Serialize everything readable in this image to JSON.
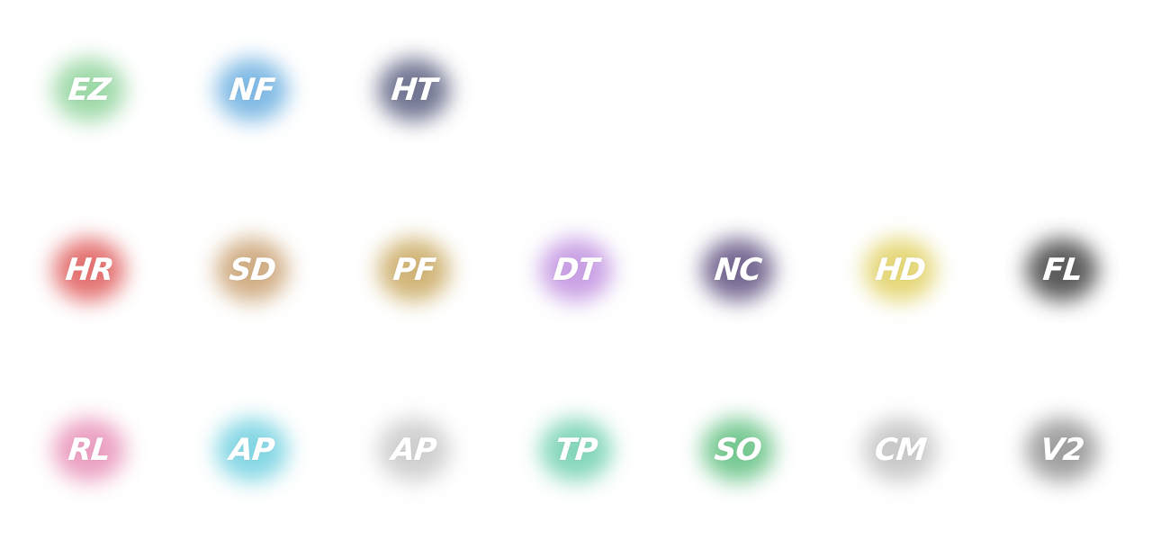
{
  "mods": [
    {
      "acronym": "EZ",
      "color": "#8ed39a"
    },
    {
      "acronym": "NF",
      "color": "#6aaee0"
    },
    {
      "acronym": "HT",
      "color": "#5a5f80"
    },
    {
      "acronym": "HR",
      "color": "#e05a5a"
    },
    {
      "acronym": "SD",
      "color": "#c9a070"
    },
    {
      "acronym": "PF",
      "color": "#c9a860"
    },
    {
      "acronym": "DT",
      "color": "#c090e0"
    },
    {
      "acronym": "NC",
      "color": "#605080"
    },
    {
      "acronym": "HD",
      "color": "#e0d060"
    },
    {
      "acronym": "FL",
      "color": "#404040"
    },
    {
      "acronym": "RL",
      "color": "#e890b8"
    },
    {
      "acronym": "AP",
      "color": "#70d0e0"
    },
    {
      "acronym": "AP",
      "color": "#c8c8c8"
    },
    {
      "acronym": "TP",
      "color": "#70d0b0"
    },
    {
      "acronym": "SO",
      "color": "#60c080"
    },
    {
      "acronym": "CM",
      "color": "#c0c0c0"
    },
    {
      "acronym": "V2",
      "color": "#909090"
    }
  ]
}
